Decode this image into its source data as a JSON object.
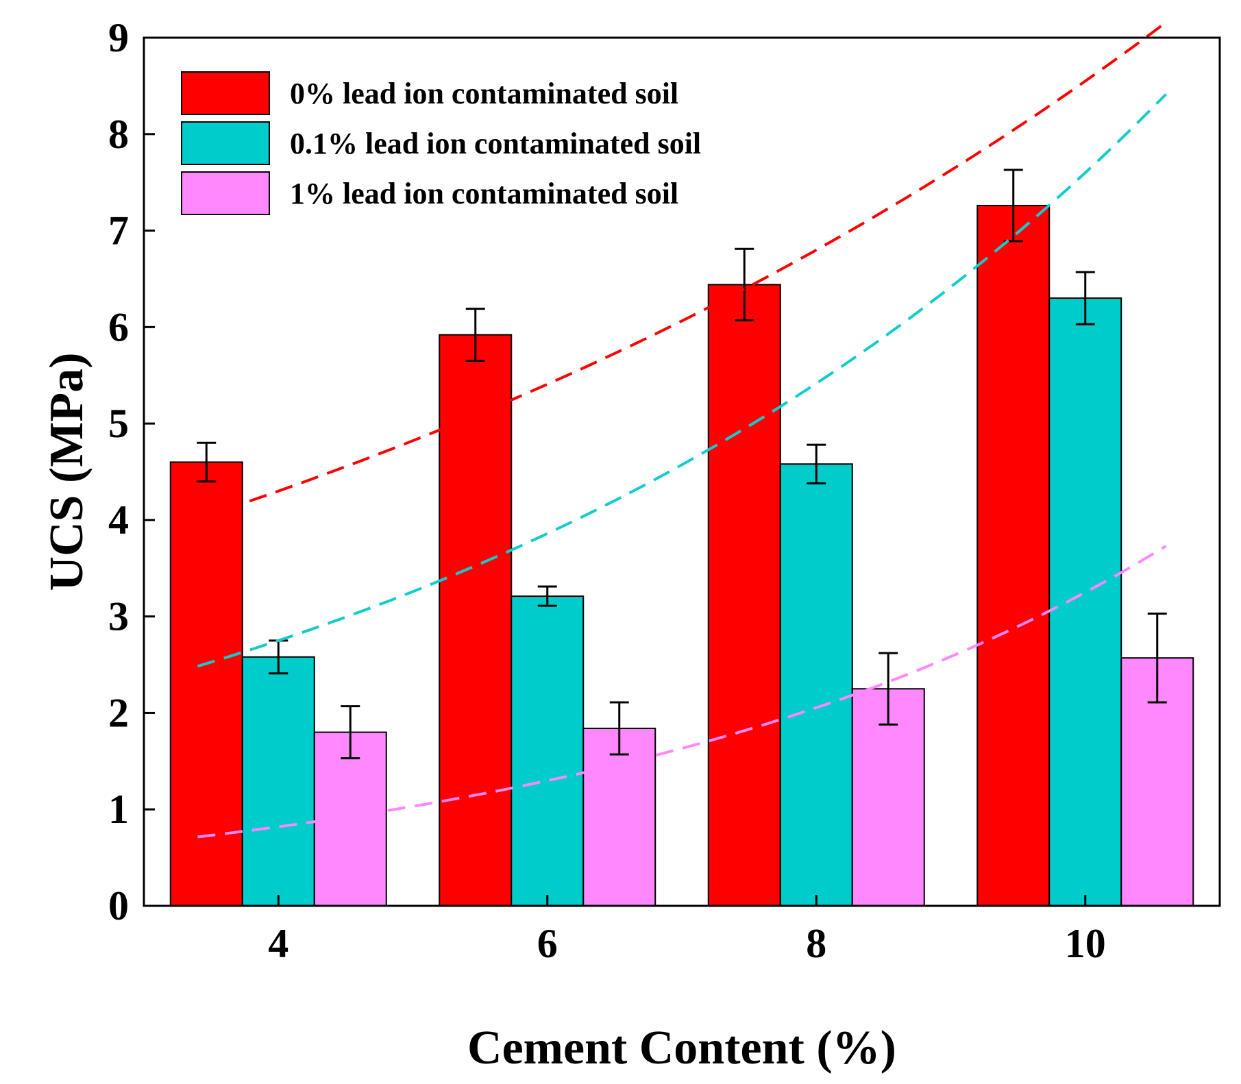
{
  "chart_data": {
    "type": "bar",
    "xlabel": "Cement Content (%)",
    "ylabel": "UCS (MPa)",
    "ylim": [
      0,
      9
    ],
    "yticks": [
      "0",
      "1",
      "2",
      "3",
      "4",
      "5",
      "6",
      "7",
      "8",
      "9"
    ],
    "categories": [
      "4",
      "6",
      "8",
      "10"
    ],
    "x_values": [
      4,
      6,
      8,
      10
    ],
    "legend_position": "top-left",
    "grid": false,
    "series": [
      {
        "name": "0% lead ion contaminated soil",
        "color": "#ff0000",
        "values": [
          4.6,
          5.92,
          6.44,
          7.26
        ],
        "errors": [
          0.2,
          0.27,
          0.37,
          0.37
        ],
        "trend": {
          "x": [
            4,
            10
          ],
          "y": [
            4.3,
            8.55
          ]
        }
      },
      {
        "name": "0.1% lead ion contaminated soil",
        "color": "#00cccc",
        "values": [
          2.58,
          3.21,
          4.58,
          6.3
        ],
        "errors": [
          0.17,
          0.1,
          0.2,
          0.27
        ],
        "trend": {
          "x": [
            4,
            10
          ],
          "y": [
            2.75,
            7.6
          ]
        }
      },
      {
        "name": "1% lead ion contaminated soil",
        "color": "#ff88ff",
        "values": [
          1.8,
          1.84,
          2.25,
          2.57
        ],
        "errors": [
          0.27,
          0.27,
          0.37,
          0.46
        ],
        "trend": {
          "x": [
            4,
            10
          ],
          "y": [
            0.82,
            3.25
          ]
        }
      }
    ],
    "trend_colors": [
      "#ff0000",
      "#11cccc",
      "#ff88ff"
    ]
  }
}
